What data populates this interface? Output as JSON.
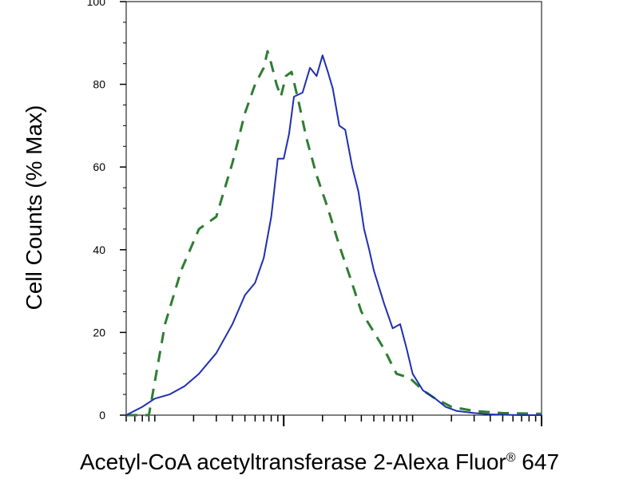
{
  "chart_data": {
    "type": "line",
    "title": "",
    "xlabel": "Acetyl-CoA acetyltransferase 2-Alexa Fluor",
    "xlabel_superscript": "®",
    "xlabel_suffix": " 647",
    "ylabel": "Cell Counts (% Max)",
    "x_scale": "log",
    "xlim": [
      0.6,
      1000
    ],
    "ylim": [
      0,
      100
    ],
    "y_ticks": [
      0,
      20,
      40,
      60,
      80,
      100
    ],
    "y_tick_labels": [
      "0",
      "20",
      "40",
      "60",
      "80",
      "100"
    ],
    "x_major_ticks": [
      10,
      1000
    ],
    "grid": false,
    "legend": "none",
    "series": [
      {
        "style": "dashed",
        "color": "#2e7d32",
        "x": [
          0.6,
          0.9,
          1.2,
          1.6,
          2.2,
          3,
          4,
          5,
          6,
          7,
          7.5,
          8,
          8.8,
          9.5,
          10.4,
          11.5,
          13,
          15,
          18,
          22,
          27,
          33,
          40,
          48,
          60,
          75,
          95,
          120,
          150,
          200,
          300,
          500,
          1000
        ],
        "y": [
          0,
          0,
          22,
          35,
          45,
          48,
          61,
          73,
          80,
          84,
          88,
          85,
          80,
          77,
          82,
          83,
          76,
          67,
          58,
          50,
          41,
          33,
          25,
          21,
          16,
          10,
          9,
          6,
          4,
          2,
          1,
          0.5,
          0.3
        ]
      },
      {
        "style": "solid",
        "color": "#1f2fb0",
        "x": [
          0.6,
          0.8,
          1,
          1.3,
          1.7,
          2.2,
          3,
          4,
          5,
          6,
          7,
          8,
          9,
          10,
          11,
          12,
          14,
          16,
          18,
          20,
          22,
          24,
          27,
          30,
          34,
          38,
          42,
          46,
          50,
          60,
          70,
          80,
          90,
          100,
          120,
          150,
          180,
          220,
          300,
          400,
          500,
          700,
          1000
        ],
        "y": [
          0,
          2,
          4,
          5,
          7,
          10,
          15,
          22,
          29,
          32,
          38,
          48,
          62,
          62,
          68,
          77,
          78,
          84,
          82,
          87,
          83,
          79,
          70,
          69,
          60,
          54,
          45,
          40,
          35,
          27,
          21,
          22,
          16,
          10,
          6,
          4,
          2,
          1,
          0.5,
          0.2,
          0.1,
          0,
          0
        ]
      }
    ]
  }
}
